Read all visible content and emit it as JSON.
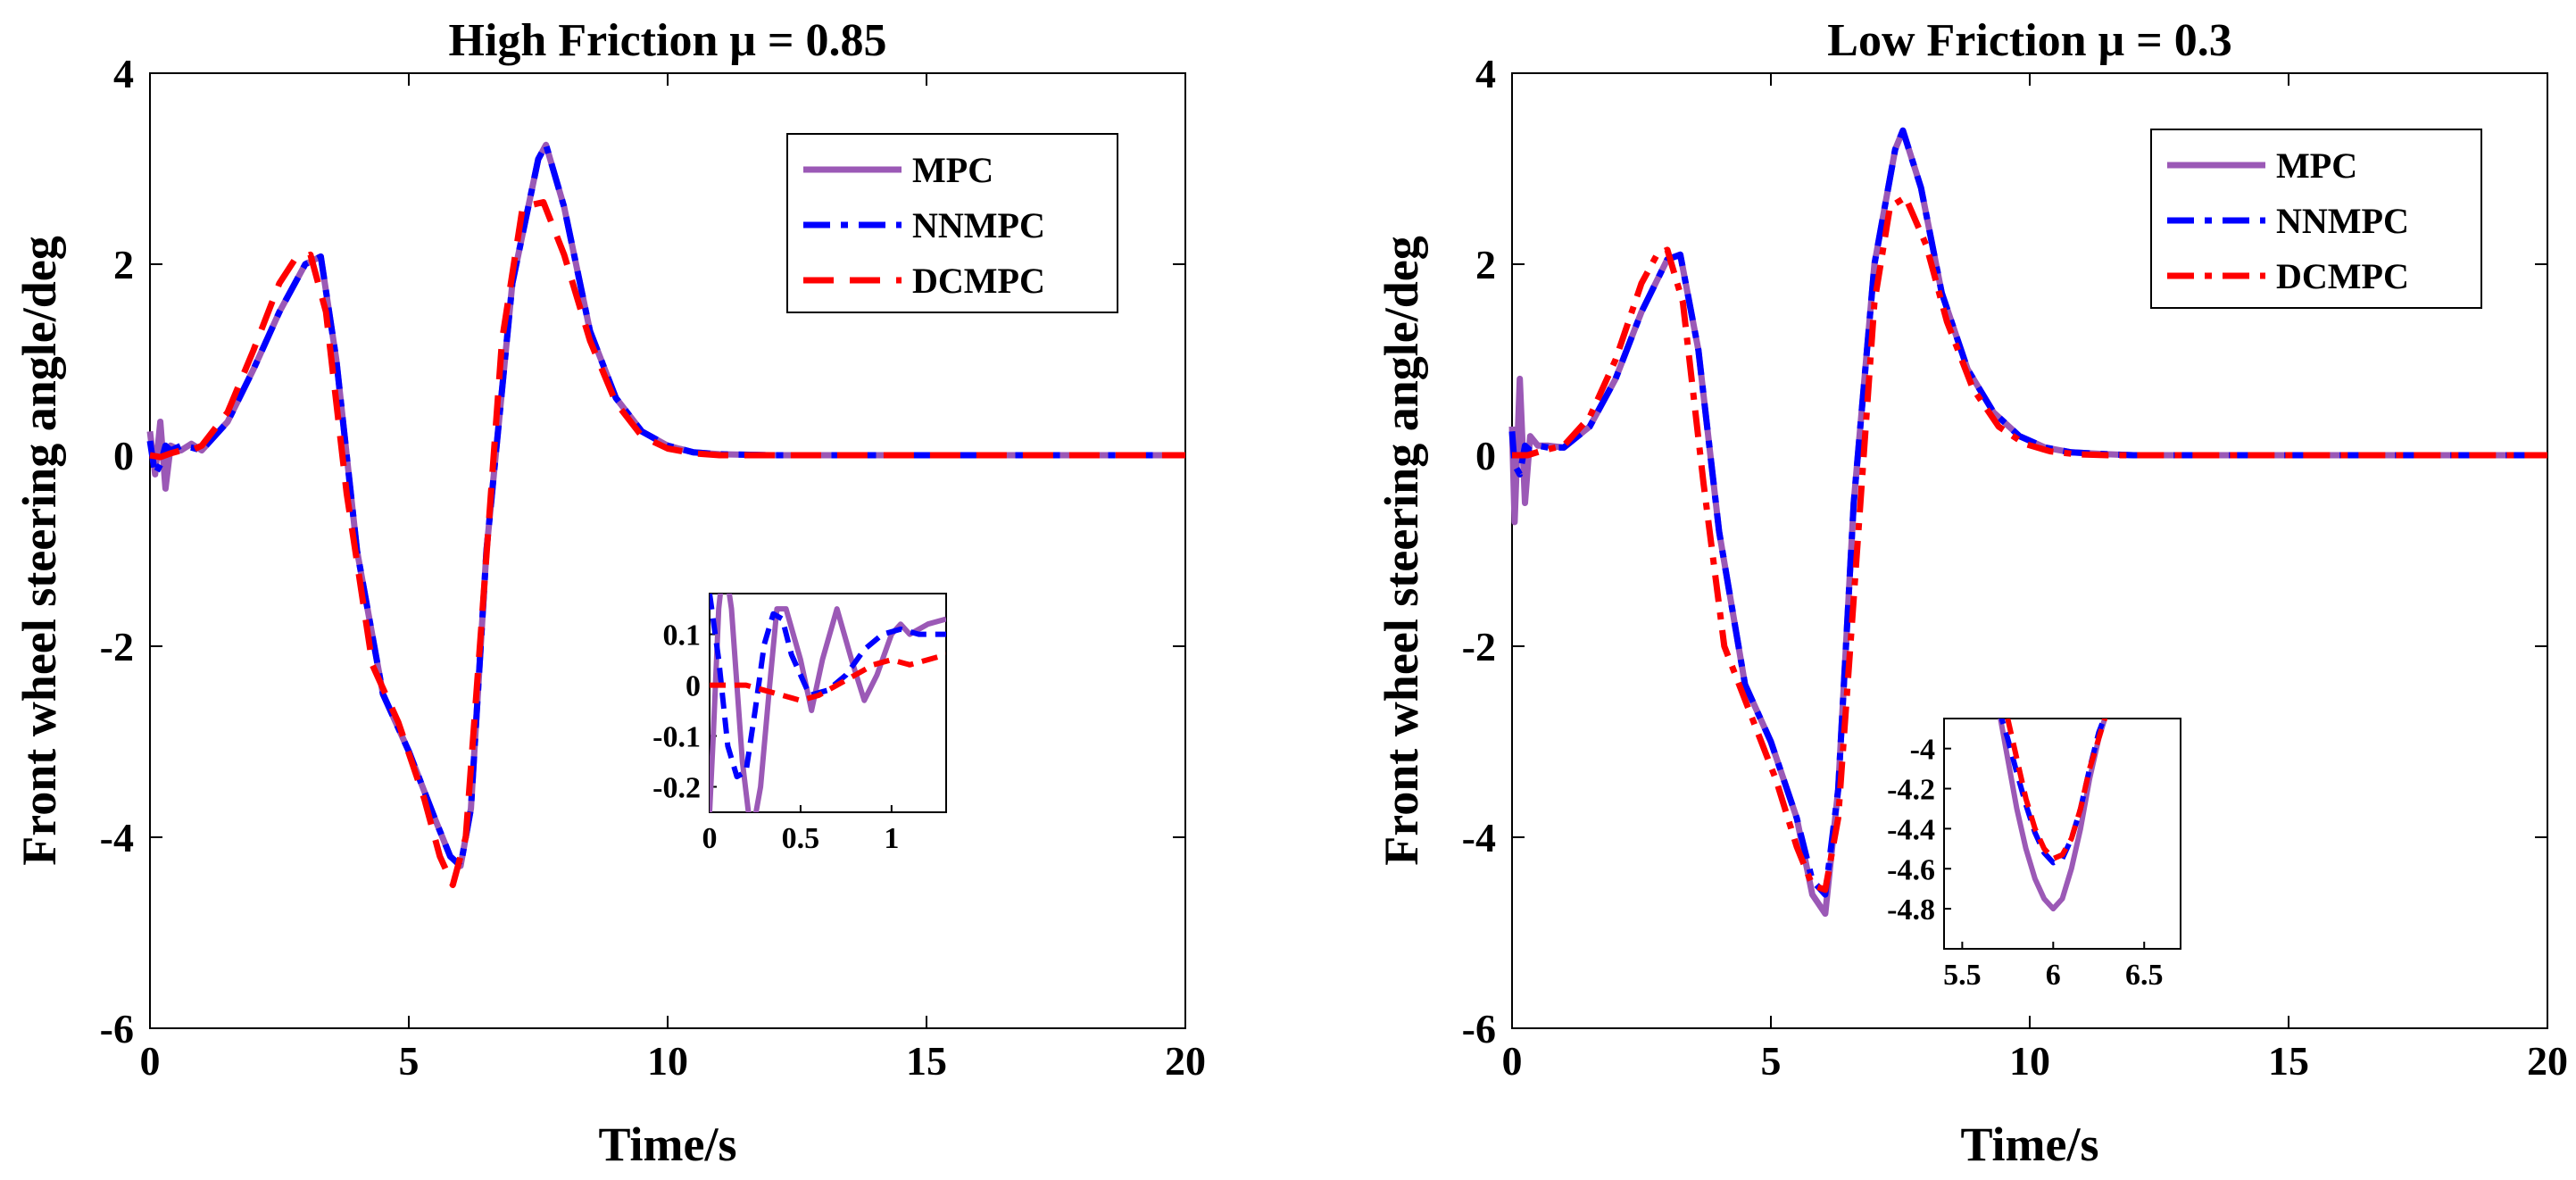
{
  "chart_data": [
    {
      "type": "line",
      "title": "High Friction μ = 0.85",
      "xlabel": "Time/s",
      "ylabel": "Front wheel steering angle/deg",
      "xlim": [
        0,
        20
      ],
      "ylim": [
        -6,
        4
      ],
      "xticks": [
        0,
        5,
        10,
        15,
        20
      ],
      "yticks": [
        -6,
        -4,
        -2,
        0,
        2,
        4
      ],
      "legend_position": "top-right",
      "series": [
        {
          "name": "MPC",
          "color": "#9b59b6",
          "style": "solid",
          "x": [
            0,
            0.1,
            0.2,
            0.3,
            0.4,
            0.6,
            0.8,
            1.0,
            1.5,
            2.0,
            2.5,
            3.0,
            3.3,
            3.6,
            4.0,
            4.5,
            5.0,
            5.5,
            5.8,
            6.0,
            6.2,
            6.5,
            7.0,
            7.5,
            7.65,
            8.0,
            8.5,
            9.0,
            9.5,
            10.0,
            10.5,
            11.0,
            12.0,
            20.0
          ],
          "y": [
            0.25,
            -0.2,
            0.35,
            -0.35,
            0.1,
            0.05,
            0.12,
            0.05,
            0.35,
            0.9,
            1.5,
            2.0,
            2.08,
            1.0,
            -1.0,
            -2.5,
            -3.1,
            -3.8,
            -4.2,
            -4.3,
            -3.7,
            -1.0,
            1.8,
            3.1,
            3.25,
            2.6,
            1.3,
            0.6,
            0.25,
            0.1,
            0.03,
            0.01,
            0,
            0
          ]
        },
        {
          "name": "NNMPC",
          "color": "#0000ff",
          "style": "dashdot",
          "x": [
            0,
            0.1,
            0.2,
            0.3,
            0.4,
            0.6,
            0.8,
            1.0,
            1.5,
            2.0,
            2.5,
            3.0,
            3.3,
            3.6,
            4.0,
            4.5,
            5.0,
            5.5,
            5.8,
            6.0,
            6.2,
            6.5,
            7.0,
            7.5,
            7.65,
            8.0,
            8.5,
            9.0,
            9.5,
            10.0,
            10.5,
            11.0,
            12.0,
            20.0
          ],
          "y": [
            0.15,
            -0.2,
            -0.1,
            0.1,
            0.05,
            0.1,
            0.08,
            0.05,
            0.35,
            0.9,
            1.5,
            2.0,
            2.08,
            1.0,
            -1.0,
            -2.5,
            -3.1,
            -3.8,
            -4.2,
            -4.3,
            -3.7,
            -1.0,
            1.8,
            3.1,
            3.25,
            2.6,
            1.3,
            0.6,
            0.25,
            0.1,
            0.03,
            0.01,
            0,
            0
          ]
        },
        {
          "name": "DCMPC",
          "color": "#ff0000",
          "style": "dashed",
          "x": [
            0,
            0.2,
            0.4,
            0.6,
            0.8,
            1.0,
            1.5,
            2.0,
            2.5,
            2.8,
            3.1,
            3.4,
            3.8,
            4.3,
            4.8,
            5.3,
            5.6,
            5.85,
            6.1,
            6.4,
            6.8,
            7.2,
            7.6,
            8.0,
            8.5,
            9.0,
            9.5,
            10.0,
            10.5,
            11.0,
            12.0,
            20.0
          ],
          "y": [
            0,
            -0.02,
            0.02,
            0.05,
            0.05,
            0.1,
            0.45,
            1.1,
            1.8,
            2.05,
            2.1,
            1.5,
            -0.4,
            -2.2,
            -2.8,
            -3.6,
            -4.2,
            -4.5,
            -4.0,
            -1.8,
            1.2,
            2.6,
            2.65,
            2.1,
            1.2,
            0.55,
            0.2,
            0.07,
            0.02,
            0,
            0,
            0
          ]
        }
      ],
      "inset": {
        "xlim": [
          0,
          1.3
        ],
        "ylim": [
          -0.25,
          0.18
        ],
        "xticks": [
          0,
          0.5,
          1
        ],
        "yticks": [
          -0.2,
          -0.1,
          0,
          0.1
        ],
        "series": [
          {
            "name": "MPC",
            "x": [
              0,
              0.02,
              0.05,
              0.08,
              0.12,
              0.18,
              0.23,
              0.28,
              0.33,
              0.37,
              0.42,
              0.5,
              0.56,
              0.62,
              0.7,
              0.78,
              0.85,
              0.92,
              1.0,
              1.05,
              1.1,
              1.2,
              1.3
            ],
            "y": [
              -0.25,
              -0.1,
              0.15,
              0.25,
              0.15,
              -0.15,
              -0.3,
              -0.2,
              0.0,
              0.15,
              0.15,
              0.05,
              -0.05,
              0.05,
              0.15,
              0.05,
              -0.03,
              0.02,
              0.1,
              0.12,
              0.1,
              0.12,
              0.13
            ]
          },
          {
            "name": "NNMPC",
            "x": [
              0,
              0.05,
              0.1,
              0.15,
              0.2,
              0.25,
              0.3,
              0.35,
              0.4,
              0.45,
              0.55,
              0.65,
              0.75,
              0.85,
              0.95,
              1.05,
              1.15,
              1.3
            ],
            "y": [
              0.18,
              0.05,
              -0.12,
              -0.18,
              -0.17,
              -0.05,
              0.08,
              0.14,
              0.13,
              0.06,
              -0.02,
              -0.01,
              0.02,
              0.07,
              0.1,
              0.11,
              0.1,
              0.1
            ]
          },
          {
            "name": "DCMPC",
            "x": [
              0,
              0.1,
              0.2,
              0.3,
              0.4,
              0.5,
              0.6,
              0.7,
              0.8,
              0.9,
              1.0,
              1.1,
              1.2,
              1.3
            ],
            "y": [
              0.0,
              0.0,
              0.0,
              -0.01,
              -0.02,
              -0.03,
              -0.02,
              0.0,
              0.02,
              0.04,
              0.05,
              0.04,
              0.05,
              0.06
            ]
          }
        ]
      }
    },
    {
      "type": "line",
      "title": "Low Friction μ = 0.3",
      "xlabel": "Time/s",
      "ylabel": "Front wheel steering angle/deg",
      "xlim": [
        0,
        20
      ],
      "ylim": [
        -6,
        4
      ],
      "xticks": [
        0,
        5,
        10,
        15,
        20
      ],
      "yticks": [
        -6,
        -4,
        -2,
        0,
        2,
        4
      ],
      "legend_position": "top-right",
      "series": [
        {
          "name": "MPC",
          "color": "#9b59b6",
          "style": "solid",
          "x": [
            0,
            0.05,
            0.15,
            0.25,
            0.35,
            0.5,
            0.7,
            1.0,
            1.5,
            2.0,
            2.5,
            3.0,
            3.25,
            3.6,
            4.0,
            4.5,
            5.0,
            5.5,
            5.8,
            6.05,
            6.3,
            6.6,
            7.0,
            7.4,
            7.55,
            7.9,
            8.3,
            8.8,
            9.3,
            9.8,
            10.3,
            10.8,
            11.5,
            12.0,
            20.0
          ],
          "y": [
            0.3,
            -0.7,
            0.8,
            -0.5,
            0.2,
            0.1,
            0.1,
            0.08,
            0.3,
            0.8,
            1.5,
            2.05,
            2.1,
            1.1,
            -0.8,
            -2.4,
            -3.0,
            -3.8,
            -4.6,
            -4.8,
            -3.5,
            -0.5,
            2.0,
            3.2,
            3.4,
            2.8,
            1.7,
            0.9,
            0.45,
            0.2,
            0.08,
            0.03,
            0.01,
            0,
            0
          ]
        },
        {
          "name": "NNMPC",
          "color": "#0000ff",
          "style": "dashdot",
          "x": [
            0,
            0.05,
            0.15,
            0.25,
            0.35,
            0.5,
            0.7,
            1.0,
            1.5,
            2.0,
            2.5,
            3.0,
            3.25,
            3.6,
            4.0,
            4.5,
            5.0,
            5.5,
            5.8,
            6.05,
            6.3,
            6.6,
            7.0,
            7.4,
            7.55,
            7.9,
            8.3,
            8.8,
            9.3,
            9.8,
            10.3,
            10.8,
            11.5,
            12.0,
            20.0
          ],
          "y": [
            0.25,
            -0.1,
            -0.2,
            0.1,
            0.05,
            0.1,
            0.08,
            0.08,
            0.3,
            0.8,
            1.5,
            2.05,
            2.1,
            1.1,
            -0.8,
            -2.4,
            -3.0,
            -3.8,
            -4.45,
            -4.6,
            -3.5,
            -0.5,
            2.0,
            3.2,
            3.4,
            2.8,
            1.7,
            0.9,
            0.45,
            0.2,
            0.08,
            0.03,
            0.01,
            0,
            0
          ]
        },
        {
          "name": "DCMPC",
          "color": "#ff0000",
          "style": "dashdot",
          "x": [
            0,
            0.3,
            0.6,
            1.0,
            1.5,
            2.0,
            2.5,
            2.8,
            3.0,
            3.3,
            3.7,
            4.1,
            4.6,
            5.1,
            5.5,
            5.8,
            6.05,
            6.3,
            6.6,
            7.0,
            7.3,
            7.6,
            8.0,
            8.4,
            8.9,
            9.4,
            9.9,
            10.4,
            10.9,
            11.5,
            12.0,
            20.0
          ],
          "y": [
            0,
            0.0,
            0.05,
            0.1,
            0.4,
            1.0,
            1.8,
            2.1,
            2.15,
            1.6,
            -0.3,
            -2.0,
            -2.7,
            -3.4,
            -4.1,
            -4.5,
            -4.55,
            -3.8,
            -1.5,
            1.6,
            2.6,
            2.7,
            2.2,
            1.4,
            0.7,
            0.3,
            0.12,
            0.04,
            0.01,
            0,
            0,
            0
          ]
        }
      ],
      "inset": {
        "xlim": [
          5.4,
          6.7
        ],
        "ylim": [
          -5.0,
          -3.85
        ],
        "xticks": [
          5.5,
          6,
          6.5
        ],
        "yticks": [
          -4,
          -4.2,
          -4.4,
          -4.6,
          -4.8
        ],
        "series": [
          {
            "name": "MPC",
            "x": [
              5.7,
              5.75,
              5.8,
              5.85,
              5.9,
              5.95,
              6.0,
              6.05,
              6.1,
              6.15,
              6.2,
              6.25,
              6.3
            ],
            "y": [
              -3.8,
              -4.05,
              -4.3,
              -4.5,
              -4.65,
              -4.75,
              -4.8,
              -4.75,
              -4.6,
              -4.4,
              -4.15,
              -3.95,
              -3.8
            ]
          },
          {
            "name": "NNMPC",
            "x": [
              5.7,
              5.75,
              5.8,
              5.85,
              5.9,
              5.95,
              6.0,
              6.05,
              6.1,
              6.15,
              6.2,
              6.25,
              6.3
            ],
            "y": [
              -3.8,
              -3.95,
              -4.12,
              -4.28,
              -4.42,
              -4.52,
              -4.57,
              -4.55,
              -4.45,
              -4.3,
              -4.1,
              -3.92,
              -3.8
            ]
          },
          {
            "name": "DCMPC",
            "x": [
              5.75,
              5.8,
              5.85,
              5.9,
              5.95,
              6.0,
              6.05,
              6.1,
              6.15,
              6.2,
              6.25,
              6.3
            ],
            "y": [
              -3.85,
              -4.05,
              -4.25,
              -4.4,
              -4.5,
              -4.55,
              -4.53,
              -4.45,
              -4.3,
              -4.1,
              -3.95,
              -3.8
            ]
          }
        ]
      }
    }
  ]
}
